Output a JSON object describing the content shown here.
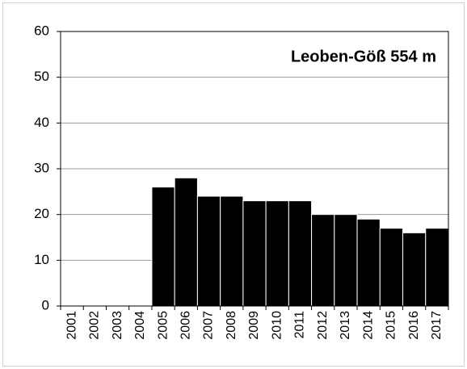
{
  "chart_data": {
    "type": "bar",
    "title": "Leoben-Göß 554 m",
    "categories": [
      "2001",
      "2002",
      "2003",
      "2004",
      "2005",
      "2006",
      "2007",
      "2008",
      "2009",
      "2010",
      "2011",
      "2012",
      "2013",
      "2014",
      "2015",
      "2016",
      "2017"
    ],
    "values": [
      null,
      null,
      null,
      null,
      26,
      28,
      24,
      24,
      23,
      23,
      23,
      20,
      20,
      19,
      17,
      16,
      17
    ],
    "color": "#000000",
    "ylim": [
      0,
      60
    ],
    "yticks": [
      0,
      10,
      20,
      30,
      40,
      50,
      60
    ],
    "grid": true
  }
}
